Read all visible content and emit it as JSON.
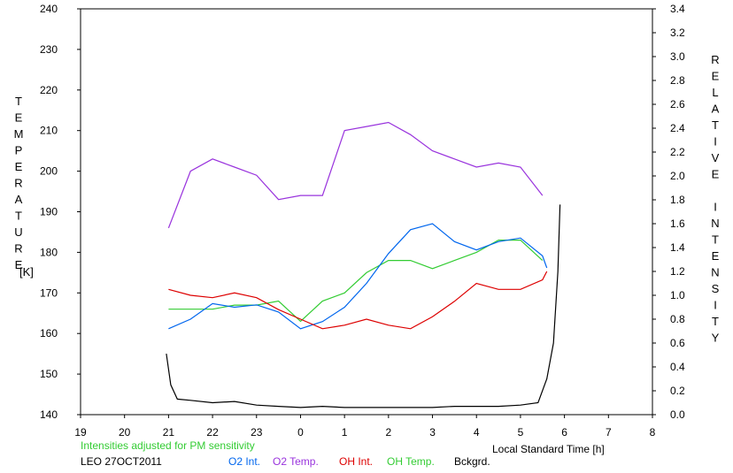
{
  "chart_data": {
    "type": "line",
    "left_axis": {
      "label": "TEMPERATURE",
      "unit": "[K]",
      "range": [
        140,
        240
      ],
      "ticks": [
        "140",
        "150",
        "160",
        "170",
        "180",
        "190",
        "200",
        "210",
        "220",
        "230",
        "240"
      ]
    },
    "right_axis": {
      "label": "RELATIVE INTENSITY",
      "range": [
        0.0,
        3.4
      ],
      "ticks": [
        "0.0",
        "0.2",
        "0.4",
        "0.6",
        "0.8",
        "1.0",
        "1.2",
        "1.4",
        "1.6",
        "1.8",
        "2.0",
        "2.2",
        "2.4",
        "2.6",
        "2.8",
        "3.0",
        "3.2",
        "3.4"
      ]
    },
    "x_axis": {
      "label": "Local Standard Time [h]",
      "range": [
        19,
        32
      ],
      "ticks": [
        "19",
        "20",
        "21",
        "22",
        "23",
        "0",
        "1",
        "2",
        "3",
        "4",
        "5",
        "6",
        "7",
        "8"
      ]
    },
    "note": "Intensities adjusted for PM sensitivity",
    "station": "LEO 27OCT2011",
    "legend": [
      {
        "name": "O2 Int.",
        "color": "#0066ee"
      },
      {
        "name": "O2 Temp.",
        "color": "#9933dd"
      },
      {
        "name": "OH Int.",
        "color": "#dd0000"
      },
      {
        "name": "OH Temp.",
        "color": "#33cc33"
      },
      {
        "name": "Bckgrd.",
        "color": "#000000"
      }
    ],
    "series": [
      {
        "name": "O2 Temp.",
        "axis": "left",
        "x": [
          21.0,
          21.5,
          22.0,
          22.5,
          23.0,
          23.5,
          24.0,
          24.5,
          25.0,
          25.5,
          26.0,
          26.5,
          27.0,
          27.5,
          28.0,
          28.5,
          29.0,
          29.5
        ],
        "y": [
          186,
          200,
          203,
          201,
          199,
          193,
          194,
          194,
          210,
          211,
          212,
          209,
          205,
          203,
          201,
          202,
          201,
          194
        ]
      },
      {
        "name": "OH Temp.",
        "axis": "left",
        "x": [
          21.0,
          21.5,
          22.0,
          22.5,
          23.0,
          23.5,
          24.0,
          24.5,
          25.0,
          25.5,
          26.0,
          26.5,
          27.0,
          27.5,
          28.0,
          28.5,
          29.0,
          29.5
        ],
        "y": [
          166,
          166,
          166,
          167,
          167,
          168,
          163,
          168,
          170,
          175,
          178,
          178,
          176,
          178,
          180,
          183,
          183,
          178
        ]
      },
      {
        "name": "O2 Int.",
        "axis": "right",
        "x": [
          21.0,
          21.5,
          22.0,
          22.5,
          23.0,
          23.5,
          24.0,
          24.5,
          25.0,
          25.5,
          26.0,
          26.5,
          27.0,
          27.5,
          28.0,
          28.5,
          29.0,
          29.5,
          29.6
        ],
        "y": [
          0.72,
          0.8,
          0.93,
          0.9,
          0.92,
          0.86,
          0.72,
          0.78,
          0.9,
          1.1,
          1.35,
          1.55,
          1.6,
          1.45,
          1.38,
          1.45,
          1.48,
          1.33,
          1.23
        ]
      },
      {
        "name": "OH Int.",
        "axis": "right",
        "x": [
          21.0,
          21.5,
          22.0,
          22.5,
          23.0,
          23.5,
          24.0,
          24.5,
          25.0,
          25.5,
          26.0,
          26.5,
          27.0,
          27.5,
          28.0,
          28.5,
          29.0,
          29.5,
          29.6
        ],
        "y": [
          1.05,
          1.0,
          0.98,
          1.02,
          0.98,
          0.88,
          0.8,
          0.72,
          0.75,
          0.8,
          0.75,
          0.72,
          0.82,
          0.95,
          1.1,
          1.05,
          1.05,
          1.13,
          1.2
        ]
      },
      {
        "name": "Bckgrd.",
        "axis": "right",
        "x": [
          20.95,
          21.05,
          21.2,
          21.5,
          22.0,
          22.5,
          23.0,
          23.5,
          24.0,
          24.5,
          25.0,
          25.5,
          26.0,
          26.5,
          27.0,
          27.5,
          28.0,
          28.5,
          29.0,
          29.4,
          29.6,
          29.75,
          29.85,
          29.9
        ],
        "y": [
          0.51,
          0.25,
          0.13,
          0.12,
          0.1,
          0.11,
          0.08,
          0.07,
          0.06,
          0.07,
          0.06,
          0.06,
          0.06,
          0.06,
          0.06,
          0.07,
          0.07,
          0.07,
          0.08,
          0.1,
          0.3,
          0.6,
          1.2,
          1.76
        ]
      }
    ]
  }
}
